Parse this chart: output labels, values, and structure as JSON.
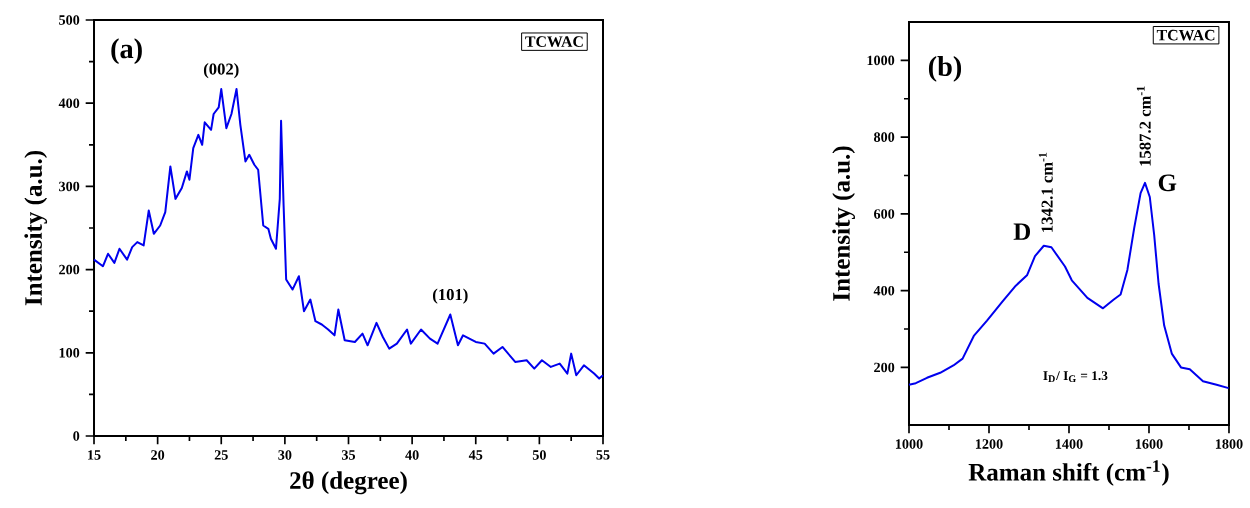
{
  "chart_data": [
    {
      "type": "line",
      "xlabel": "2θ (degree)",
      "ylabel": "Intensity (a.u.)",
      "xlim": [
        15,
        55
      ],
      "ylim": [
        0,
        500
      ],
      "xticks": [
        15,
        20,
        25,
        30,
        35,
        40,
        45,
        50,
        55
      ],
      "yticks": [
        0,
        100,
        200,
        300,
        400,
        500
      ],
      "annotations": [
        "(a)",
        "TCWAC",
        {
          "text": "(002)",
          "x": 25.0,
          "y": 417
        },
        {
          "text": "(101)",
          "x": 43.0,
          "y": 146
        }
      ],
      "series": [
        {
          "color": "#0000ee",
          "x": [
            15,
            15.7,
            16.1,
            16.6,
            17.0,
            17.6,
            18.0,
            18.4,
            18.9,
            19.3,
            19.7,
            20.2,
            20.6,
            21.0,
            21.4,
            21.9,
            22.3,
            22.5,
            22.8,
            23.2,
            23.5,
            23.7,
            24.2,
            24.4,
            24.8,
            25.0,
            25.4,
            25.8,
            26.2,
            26.5,
            26.9,
            27.2,
            27.6,
            27.9,
            28.3,
            28.7,
            28.9,
            29.3,
            29.6,
            29.7,
            29.9,
            30.1,
            30.6,
            31.1,
            31.5,
            32.0,
            32.4,
            32.9,
            33.4,
            33.9,
            34.2,
            34.7,
            35.5,
            36.1,
            36.5,
            37.2,
            37.7,
            38.2,
            38.8,
            39.6,
            39.9,
            40.7,
            41.4,
            42.0,
            43.0,
            43.6,
            44.0,
            45.0,
            45.7,
            46.4,
            47.1,
            48.1,
            49.0,
            49.6,
            50.2,
            50.9,
            51.6,
            52.2,
            52.5,
            52.9,
            53.5,
            54.3,
            54.7,
            55.0
          ],
          "values": [
            212,
            204,
            219,
            208,
            225,
            212,
            227,
            233,
            229,
            271,
            243,
            253,
            269,
            324,
            285,
            298,
            318,
            308,
            346,
            362,
            350,
            377,
            368,
            387,
            395,
            417,
            370,
            387,
            417,
            374,
            330,
            338,
            326,
            320,
            253,
            249,
            237,
            225,
            285,
            379,
            277,
            188,
            176,
            192,
            150,
            164,
            138,
            134,
            128,
            121,
            152,
            115,
            113,
            123,
            109,
            136,
            119,
            105,
            111,
            128,
            111,
            128,
            117,
            111,
            146,
            109,
            121,
            113,
            111,
            99,
            107,
            89,
            91,
            81,
            91,
            83,
            87,
            75,
            99,
            73,
            85,
            75,
            69,
            73
          ]
        }
      ]
    },
    {
      "type": "line",
      "xlabel": "Raman shift (cm$^{-1}$)",
      "ylabel": "Intensity (a.u.)",
      "xlim": [
        1000,
        1800
      ],
      "ylim": [
        50,
        1100
      ],
      "xticks": [
        1000,
        1200,
        1400,
        1600,
        1800
      ],
      "yticks": [
        200,
        400,
        600,
        800,
        1000
      ],
      "annotations": [
        "(b)",
        "TCWAC",
        "I$_{D}$/ I$_{G}$ = 1.3",
        {
          "text": "D",
          "x": 1337,
          "y": 517
        },
        {
          "text": "1342.1 cm$^{-1}$",
          "x": 1342.1,
          "y": 517
        },
        {
          "text": "G",
          "x": 1590,
          "y": 681
        },
        {
          "text": "1587.2 cm$^{-1}$",
          "x": 1587.2,
          "y": 681
        }
      ],
      "series": [
        {
          "color": "#0000ee",
          "x": [
            1000,
            1017,
            1045,
            1078,
            1111,
            1134,
            1162,
            1195,
            1234,
            1267,
            1295,
            1315,
            1337,
            1356,
            1390,
            1407,
            1446,
            1485,
            1512,
            1529,
            1546,
            1563,
            1579,
            1590,
            1602,
            1613,
            1624,
            1638,
            1657,
            1680,
            1702,
            1735,
            1769,
            1799
          ],
          "values": [
            155,
            159,
            173,
            186,
            205,
            223,
            282,
            322,
            372,
            413,
            440,
            490,
            517,
            513,
            463,
            427,
            381,
            354,
            377,
            390,
            454,
            563,
            654,
            681,
            644,
            545,
            418,
            309,
            236,
            200,
            195,
            164,
            155,
            146
          ]
        }
      ]
    }
  ]
}
